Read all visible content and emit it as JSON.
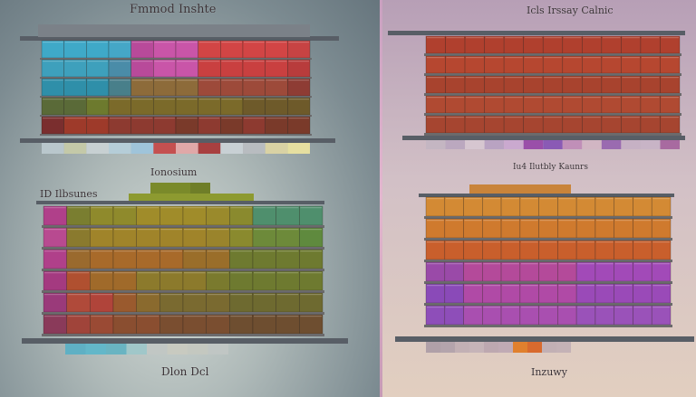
{
  "panels": {
    "top_left": {
      "title": "Fmmod Inshte",
      "colors": {
        "rows": [
          [
            "#3fa9c8",
            "#3fa9c8",
            "#3fa9c8",
            "#45a7c7",
            "#b84a9a",
            "#c955a8",
            "#c955a8",
            "#d24545",
            "#d24545",
            "#d24545",
            "#d24545",
            "#c74343"
          ],
          [
            "#3ea0bc",
            "#3ea0bc",
            "#3ea0bc",
            "#4a8ca8",
            "#b84a9a",
            "#c955a8",
            "#c955a8",
            "#c94040",
            "#c94040",
            "#c94040",
            "#c94040",
            "#b83c3c"
          ],
          [
            "#2f8fa9",
            "#2f8fa9",
            "#2f8fa9",
            "#487f8a",
            "#8d6b3a",
            "#8d6b3a",
            "#8d6b3a",
            "#9d4a3a",
            "#9d4a3a",
            "#9d4a3a",
            "#9d4a3a",
            "#8e3c34"
          ],
          [
            "#5a6a38",
            "#5a6a38",
            "#6d7a2e",
            "#7b6a2a",
            "#7b6a2a",
            "#7b6a2a",
            "#7b6a2a",
            "#7b6a2a",
            "#7b6a2a",
            "#6e5a2a",
            "#6e5a2a",
            "#6e5a2a"
          ],
          [
            "#7a2e2e",
            "#9e3a2a",
            "#9e3a2a",
            "#8d3a30",
            "#8d3a30",
            "#8d3a30",
            "#7a3a2a",
            "#8d3a30",
            "#7a3a2a",
            "#8d3a30",
            "#7a3a2a",
            "#7a3a2a"
          ]
        ],
        "strip": [
          "#b9c7cc",
          "#c4c9a8",
          "#c7d0d2",
          "#b5cdd8",
          "#9fc4da",
          "#c45050",
          "#e0a8a8",
          "#a84040",
          "#c8d0d4",
          "#b8bcc0",
          "#d9d2a4",
          "#e6dfa0"
        ]
      }
    },
    "top_right": {
      "title": "Icls Irssay Calnic",
      "colors": {
        "rows": [
          [
            "#b0402e",
            "#b0402e",
            "#b0402e",
            "#b0402e",
            "#b0402e",
            "#b0402e",
            "#b0402e",
            "#b0402e",
            "#b0402e",
            "#b0402e",
            "#b0402e",
            "#b0402e",
            "#b0402e"
          ],
          [
            "#b64730",
            "#b64730",
            "#b64730",
            "#b64730",
            "#b64730",
            "#b64730",
            "#b64730",
            "#b64730",
            "#b64730",
            "#b64730",
            "#b64730",
            "#b64730",
            "#b64730"
          ],
          [
            "#a8432e",
            "#a8432e",
            "#a8432e",
            "#a8432e",
            "#a8432e",
            "#a8432e",
            "#a8432e",
            "#a8432e",
            "#a8432e",
            "#a8432e",
            "#a8432e",
            "#a8432e",
            "#a8432e"
          ],
          [
            "#b04a32",
            "#b04a32",
            "#b04a32",
            "#b04a32",
            "#b04a32",
            "#b04a32",
            "#b04a32",
            "#b04a32",
            "#b04a32",
            "#b04a32",
            "#b04a32",
            "#b04a32",
            "#b04a32"
          ],
          [
            "#a64530",
            "#a64530",
            "#a64530",
            "#a64530",
            "#a64530",
            "#a64530",
            "#a64530",
            "#a64530",
            "#a64530",
            "#a64530",
            "#a64530",
            "#a64530",
            "#a64530"
          ]
        ],
        "strip": [
          "#c4b6c2",
          "#bba8bf",
          "#d6c6d0",
          "#b9a3c2",
          "#caa9cf",
          "#9a4fa9",
          "#8a5ab5",
          "#c08fb8",
          "#d1b6c3",
          "#9a6bb0",
          "#c6b1c4",
          "#c8b4c6",
          "#a86aa0"
        ]
      }
    },
    "bottom_left": {
      "title": "Ionosium",
      "subtitle": "ID Ilbsunes",
      "footer": "Dlon Dcl",
      "colors": {
        "top_row": [
          "#7a8a2a",
          "#7a8a2a",
          "#6f7e28"
        ],
        "second_row": [
          "#8d9a30",
          "#8d9a30",
          "#8d9a30",
          "#8d9a30",
          "#8d9a30",
          "#8d9a30"
        ],
        "rows": [
          [
            "#b0408a",
            "#7a7e30",
            "#8f8a2c",
            "#8f8a2c",
            "#a08c2a",
            "#a08c2a",
            "#a08c2a",
            "#9a8a2c",
            "#8a8a2e",
            "#4f8f6d",
            "#4f8f6d",
            "#4f8f6d"
          ],
          [
            "#b84a90",
            "#8a7a2e",
            "#a0842a",
            "#a0842a",
            "#a0842a",
            "#a0842a",
            "#a0842a",
            "#9a842c",
            "#8a8a2e",
            "#6d8a3a",
            "#6d8a3a",
            "#5f8a3e"
          ],
          [
            "#b0408a",
            "#9a6a2e",
            "#a86a2a",
            "#a86a2a",
            "#a86a2a",
            "#a86a2a",
            "#9a6e2a",
            "#9a6e2a",
            "#6e7a30",
            "#6e7a30",
            "#6e7a30",
            "#6e7a30"
          ],
          [
            "#a43a80",
            "#b05030",
            "#a06a2a",
            "#a06a2a",
            "#8c7a2c",
            "#8c7a2c",
            "#8c7a2c",
            "#7a7a2e",
            "#6e7a30",
            "#6e7a30",
            "#6e7a30",
            "#6e7a30"
          ],
          [
            "#9a3a7a",
            "#b04a3a",
            "#b0443a",
            "#9a5a2e",
            "#8a6a2e",
            "#7a6a30",
            "#7a6a30",
            "#7a6a30",
            "#6e6a30",
            "#6e6a30",
            "#6e6a30",
            "#6e6a30"
          ],
          [
            "#8a3a5a",
            "#a0443a",
            "#9a4a34",
            "#8a4e30",
            "#8a4e30",
            "#7a4e30",
            "#7a4e30",
            "#7a4e30",
            "#6e4e30",
            "#6e4e30",
            "#6e4e30",
            "#6e4e30"
          ]
        ],
        "strip": [
          "#5fb0c4",
          "#63b7c9",
          "#69b4c2",
          "#a0c7c9",
          "#c1c7c4",
          "#c8cac0",
          "#c4c8c0",
          "#c0c6c4"
        ]
      }
    },
    "bottom_right": {
      "title": "Iu4 Ilutbly Kaunrs",
      "footer": "Inzuwy",
      "colors": {
        "top_row": [
          "#c9843a",
          "#c9843a",
          "#c9843a",
          "#c9843a",
          "#c9843a",
          "#c9843a",
          "#c9843a",
          "#c9843a"
        ],
        "rows": [
          [
            "#d38a34",
            "#d38a34",
            "#d38a34",
            "#d38a34",
            "#d38a34",
            "#d38a34",
            "#d38a34",
            "#d38a34",
            "#d38a34",
            "#d38a34",
            "#d38a34",
            "#d38a34",
            "#d38a34"
          ],
          [
            "#cf7a2e",
            "#cf7a2e",
            "#cf7a2e",
            "#cf7a2e",
            "#cf7a2e",
            "#cf7a2e",
            "#cf7a2e",
            "#cf7a2e",
            "#cf7a2e",
            "#cf7a2e",
            "#cf7a2e",
            "#cf7a2e",
            "#cf7a2e"
          ],
          [
            "#c95f2c",
            "#c95f2c",
            "#c95f2c",
            "#c95f2c",
            "#c95f2c",
            "#c95f2c",
            "#c95f2c",
            "#c95f2c",
            "#c95f2c",
            "#c95f2c",
            "#c95f2c",
            "#c95f2c",
            "#c95f2c"
          ],
          [
            "#9a4aa8",
            "#9a4aa8",
            "#b44a9a",
            "#b44a9a",
            "#b44a9a",
            "#b44a9a",
            "#b44a9a",
            "#b44a9a",
            "#a24ab8",
            "#a24ab8",
            "#a24ab8",
            "#a24ab8",
            "#a24ab8"
          ],
          [
            "#8a4ab8",
            "#8a4ab8",
            "#b04aa6",
            "#b04aa6",
            "#b04aa6",
            "#b04aa6",
            "#b04aa6",
            "#b04aa6",
            "#9a4ab8",
            "#9a4ab8",
            "#9a4ab8",
            "#9a4ab8",
            "#9a4ab8"
          ],
          [
            "#8e4eb9",
            "#8e4eb9",
            "#a94fb0",
            "#a94fb0",
            "#a94fb0",
            "#a94fb0",
            "#a94fb0",
            "#a94fb0",
            "#9a52b9",
            "#9a52b9",
            "#9a52b9",
            "#9a52b9",
            "#9a52b9"
          ]
        ],
        "strip": [
          "#b0a0a8",
          "#b4a4ac",
          "#c2b0b4",
          "#c6b4b8",
          "#bda8b0",
          "#c0aab4",
          "#e0802e",
          "#d86a2e",
          "#c2b0b4",
          "#c4b2b6"
        ]
      }
    }
  }
}
